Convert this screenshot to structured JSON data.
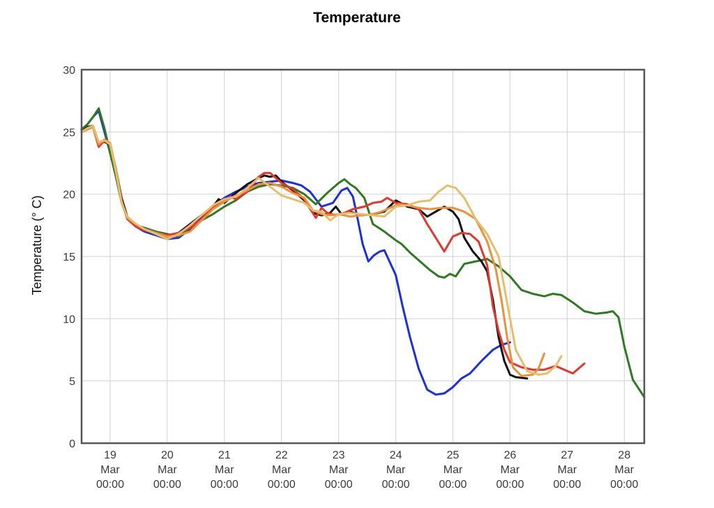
{
  "chart_data": {
    "type": "line",
    "title": "Temperature",
    "xlabel": "",
    "ylabel": "Temperature (° C)",
    "ylim": [
      0,
      30
    ],
    "yticks": [
      0,
      5,
      10,
      15,
      20,
      25,
      30
    ],
    "xlim": [
      18.5,
      28.35
    ],
    "xticks": [
      {
        "value": 19,
        "lines": [
          "19",
          "Mar",
          "00:00"
        ]
      },
      {
        "value": 20,
        "lines": [
          "20",
          "Mar",
          "00:00"
        ]
      },
      {
        "value": 21,
        "lines": [
          "21",
          "Mar",
          "00:00"
        ]
      },
      {
        "value": 22,
        "lines": [
          "22",
          "Mar",
          "00:00"
        ]
      },
      {
        "value": 23,
        "lines": [
          "23",
          "Mar",
          "00:00"
        ]
      },
      {
        "value": 24,
        "lines": [
          "24",
          "Mar",
          "00:00"
        ]
      },
      {
        "value": 25,
        "lines": [
          "25",
          "Mar",
          "00:00"
        ]
      },
      {
        "value": 26,
        "lines": [
          "26",
          "Mar",
          "00:00"
        ]
      },
      {
        "value": 27,
        "lines": [
          "27",
          "Mar",
          "00:00"
        ]
      },
      {
        "value": 28,
        "lines": [
          "28",
          "Mar",
          "00:00"
        ]
      }
    ],
    "grid": true,
    "legend": "none",
    "series": [
      {
        "color": "#1a2ee8",
        "x": [
          18.5,
          18.6,
          18.7,
          18.8,
          18.9,
          19.0,
          19.1,
          19.2,
          19.3,
          19.45,
          19.6,
          19.8,
          20.0,
          20.2,
          20.4,
          20.6,
          20.8,
          21.0,
          21.2,
          21.4,
          21.6,
          21.8,
          22.0,
          22.2,
          22.35,
          22.5,
          22.7,
          22.9,
          23.05,
          23.15,
          23.25,
          23.32,
          23.42,
          23.52,
          23.62,
          23.72,
          23.8,
          23.9,
          24.0,
          24.12,
          24.25,
          24.4,
          24.55,
          24.7,
          24.85,
          25.0,
          25.15,
          25.3,
          25.5,
          25.7,
          25.85,
          26.0
        ],
        "y": [
          25.2,
          25.6,
          26.2,
          26.7,
          25.0,
          23.3,
          21.5,
          19.5,
          18.2,
          17.4,
          17.0,
          16.7,
          16.4,
          16.5,
          17.2,
          18.2,
          19.0,
          19.7,
          20.2,
          20.6,
          20.9,
          21.0,
          21.1,
          20.9,
          20.7,
          20.2,
          19.0,
          19.3,
          20.3,
          20.5,
          19.8,
          18.3,
          16.0,
          14.6,
          15.1,
          15.4,
          15.5,
          14.5,
          13.5,
          11.0,
          8.5,
          6.0,
          4.3,
          3.9,
          4.0,
          4.5,
          5.2,
          5.6,
          6.6,
          7.5,
          7.9,
          8.1
        ]
      },
      {
        "color": "#2d7a1f",
        "x": [
          18.5,
          18.6,
          18.7,
          18.8,
          18.9,
          19.0,
          19.1,
          19.2,
          19.3,
          19.45,
          19.6,
          19.8,
          20.0,
          20.2,
          20.4,
          20.6,
          20.8,
          21.0,
          21.2,
          21.4,
          21.6,
          21.8,
          22.0,
          22.2,
          22.4,
          22.6,
          22.8,
          23.0,
          23.1,
          23.2,
          23.3,
          23.45,
          23.6,
          23.8,
          24.0,
          24.1,
          24.25,
          24.4,
          24.6,
          24.75,
          24.85,
          24.95,
          25.05,
          25.2,
          25.4,
          25.6,
          25.8,
          26.0,
          26.2,
          26.4,
          26.6,
          26.75,
          26.9,
          27.1,
          27.3,
          27.5,
          27.7,
          27.8,
          27.9,
          28.0,
          28.15,
          28.35
        ],
        "y": [
          25.2,
          25.6,
          26.2,
          26.9,
          25.3,
          23.3,
          21.4,
          19.3,
          18.1,
          17.5,
          17.3,
          17.0,
          16.8,
          16.6,
          17.3,
          17.9,
          18.4,
          19.0,
          19.5,
          20.2,
          20.6,
          20.8,
          20.7,
          20.5,
          20.0,
          19.2,
          20.1,
          20.9,
          21.2,
          20.8,
          20.5,
          19.7,
          17.6,
          17.0,
          16.3,
          16.0,
          15.3,
          14.7,
          13.9,
          13.4,
          13.3,
          13.6,
          13.4,
          14.4,
          14.6,
          14.8,
          14.2,
          13.4,
          12.3,
          12.0,
          11.8,
          12.0,
          11.9,
          11.3,
          10.6,
          10.4,
          10.5,
          10.6,
          10.1,
          7.8,
          5.1,
          3.7
        ]
      },
      {
        "color": "#111111",
        "x": [
          18.5,
          18.6,
          18.7,
          18.8,
          18.9,
          19.0,
          19.1,
          19.2,
          19.3,
          19.45,
          19.6,
          19.8,
          20.0,
          20.2,
          20.4,
          20.6,
          20.8,
          20.9,
          21.0,
          21.2,
          21.4,
          21.6,
          21.7,
          21.8,
          21.9,
          22.0,
          22.2,
          22.4,
          22.55,
          22.7,
          22.85,
          22.95,
          23.05,
          23.2,
          23.4,
          23.6,
          23.8,
          24.0,
          24.2,
          24.4,
          24.55,
          24.7,
          24.85,
          25.0,
          25.1,
          25.2,
          25.35,
          25.5,
          25.6,
          25.7,
          25.8,
          25.9,
          26.0,
          26.1,
          26.3
        ],
        "y": [
          25.0,
          25.4,
          25.5,
          24.1,
          24.2,
          24.0,
          22.0,
          19.7,
          18.2,
          17.5,
          17.2,
          16.9,
          16.6,
          16.9,
          17.6,
          18.3,
          19.0,
          19.6,
          19.3,
          20.1,
          20.8,
          21.3,
          21.5,
          21.4,
          21.5,
          21.0,
          20.3,
          19.5,
          18.5,
          18.3,
          18.5,
          19.0,
          18.4,
          18.6,
          18.3,
          18.4,
          18.6,
          19.5,
          19.0,
          18.8,
          18.2,
          18.6,
          19.0,
          18.6,
          18.0,
          16.5,
          15.4,
          14.6,
          13.8,
          11.5,
          8.5,
          6.6,
          5.5,
          5.3,
          5.2
        ]
      },
      {
        "color": "#e8352a",
        "x": [
          18.5,
          18.6,
          18.7,
          18.8,
          18.9,
          19.0,
          19.1,
          19.2,
          19.3,
          19.45,
          19.6,
          19.8,
          20.0,
          20.2,
          20.4,
          20.6,
          20.8,
          21.0,
          21.1,
          21.2,
          21.4,
          21.6,
          21.7,
          21.8,
          22.0,
          22.2,
          22.4,
          22.6,
          22.7,
          22.8,
          22.95,
          23.1,
          23.25,
          23.45,
          23.6,
          23.75,
          23.85,
          24.0,
          24.2,
          24.4,
          24.55,
          24.7,
          24.85,
          25.0,
          25.15,
          25.3,
          25.45,
          25.6,
          25.7,
          25.8,
          25.9,
          26.0,
          26.2,
          26.4,
          26.6,
          26.8,
          27.0,
          27.1,
          27.3
        ],
        "y": [
          25.0,
          25.2,
          25.4,
          23.8,
          24.3,
          24.0,
          22.0,
          19.5,
          18.0,
          17.4,
          17.1,
          16.9,
          16.7,
          16.9,
          17.3,
          18.0,
          19.0,
          19.5,
          19.8,
          19.6,
          20.2,
          21.4,
          21.7,
          21.7,
          20.9,
          20.4,
          19.6,
          18.1,
          18.9,
          18.5,
          18.3,
          18.5,
          18.8,
          19.0,
          19.3,
          19.4,
          19.7,
          19.3,
          19.2,
          18.8,
          17.6,
          16.5,
          15.4,
          16.6,
          16.9,
          16.8,
          16.2,
          14.3,
          11.0,
          9.0,
          7.5,
          6.5,
          6.1,
          5.9,
          5.9,
          6.2,
          5.8,
          5.6,
          6.4
        ]
      },
      {
        "color": "#ee8f3a",
        "x": [
          18.5,
          18.6,
          18.7,
          18.8,
          18.9,
          19.0,
          19.1,
          19.2,
          19.3,
          19.45,
          19.6,
          19.8,
          20.0,
          20.2,
          20.4,
          20.6,
          20.8,
          21.0,
          21.2,
          21.4,
          21.6,
          21.8,
          22.0,
          22.2,
          22.4,
          22.55,
          22.7,
          22.85,
          23.0,
          23.2,
          23.4,
          23.6,
          23.75,
          23.9,
          24.05,
          24.2,
          24.4,
          24.6,
          24.8,
          25.0,
          25.2,
          25.4,
          25.6,
          25.75,
          25.85,
          25.95,
          26.05,
          26.2,
          26.4,
          26.5,
          26.6
        ],
        "y": [
          25.0,
          25.2,
          25.4,
          24.0,
          24.4,
          24.1,
          22.0,
          19.4,
          18.1,
          17.6,
          17.2,
          16.9,
          16.6,
          16.7,
          17.0,
          17.9,
          18.8,
          19.4,
          19.9,
          20.3,
          20.8,
          20.9,
          20.6,
          20.1,
          19.7,
          18.7,
          18.4,
          18.3,
          18.4,
          18.2,
          18.3,
          18.4,
          18.6,
          18.9,
          19.2,
          19.1,
          18.9,
          18.8,
          18.9,
          18.9,
          18.6,
          18.0,
          16.2,
          14.0,
          11.5,
          8.5,
          6.1,
          5.4,
          5.5,
          6.0,
          7.2
        ]
      },
      {
        "color": "#e6be6b",
        "x": [
          18.5,
          18.6,
          18.7,
          18.8,
          18.9,
          19.0,
          19.1,
          19.2,
          19.3,
          19.45,
          19.6,
          19.8,
          20.0,
          20.2,
          20.4,
          20.6,
          20.8,
          21.0,
          21.2,
          21.4,
          21.6,
          21.8,
          22.0,
          22.2,
          22.4,
          22.55,
          22.7,
          22.85,
          23.0,
          23.2,
          23.4,
          23.6,
          23.8,
          24.0,
          24.2,
          24.4,
          24.6,
          24.75,
          24.9,
          25.05,
          25.2,
          25.4,
          25.6,
          25.8,
          25.9,
          26.0,
          26.1,
          26.3,
          26.5,
          26.65,
          26.8,
          26.9
        ],
        "y": [
          25.0,
          25.3,
          25.5,
          24.2,
          24.3,
          24.0,
          21.8,
          19.3,
          18.2,
          17.6,
          17.2,
          16.8,
          16.4,
          16.8,
          17.5,
          18.3,
          19.1,
          19.6,
          19.8,
          20.5,
          21.3,
          20.6,
          19.9,
          19.6,
          19.3,
          18.7,
          18.6,
          17.9,
          18.4,
          18.5,
          18.4,
          18.3,
          18.2,
          19.0,
          19.1,
          19.4,
          19.5,
          20.2,
          20.7,
          20.5,
          19.7,
          18.0,
          16.8,
          15.0,
          12.5,
          10.0,
          7.5,
          5.8,
          5.5,
          5.6,
          6.2,
          7.0
        ]
      }
    ]
  }
}
